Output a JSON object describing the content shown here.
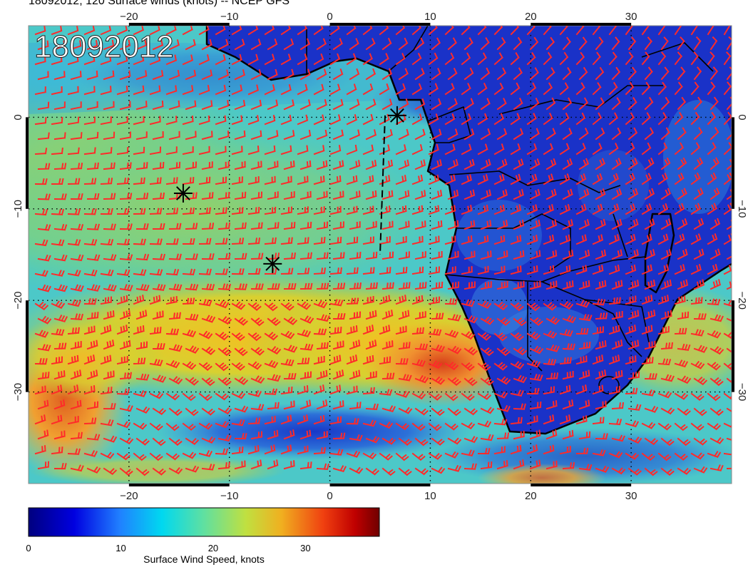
{
  "title": "18092012, 120 Surface winds (knots) -- NCEP GFS",
  "stamp": "18092012",
  "map": {
    "lon_range": [
      -30,
      40
    ],
    "lat_range": [
      -40,
      10
    ],
    "lon_ticks": [
      -20,
      -10,
      0,
      10,
      20,
      30
    ],
    "lat_ticks": [
      0,
      -10,
      -20,
      -30
    ],
    "lon_tick_labels": [
      "−20",
      "−10",
      "0",
      "10",
      "20",
      "30"
    ],
    "lat_tick_labels": [
      "0",
      "−10",
      "−20",
      "−30"
    ],
    "land_color": "#1530c8",
    "barb_color": "#ff2a2a",
    "markers": [
      {
        "lon": 6.7,
        "lat": 0.2
      },
      {
        "lon": -14.6,
        "lat": -8.3
      },
      {
        "lon": -5.7,
        "lat": -16.0
      }
    ],
    "dashed_line": [
      [
        5.5,
        0.2
      ],
      [
        5.0,
        -15.0
      ]
    ]
  },
  "colorbar": {
    "label": "Surface Wind Speed, knots",
    "range": [
      0,
      38
    ],
    "ticks": [
      0,
      10,
      20,
      30
    ],
    "tick_labels": [
      "0",
      "10",
      "20",
      "30"
    ]
  }
}
